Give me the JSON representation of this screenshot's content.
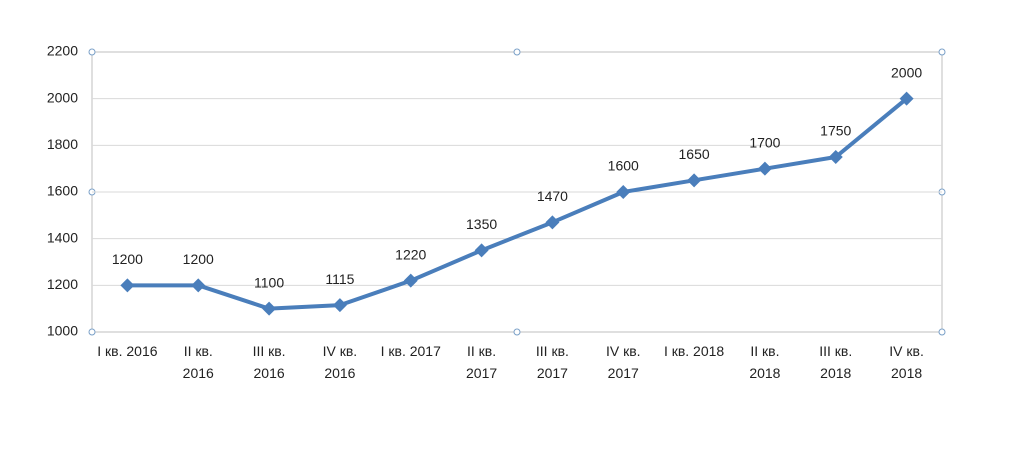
{
  "chart_data": {
    "type": "line",
    "categories": [
      "I кв. 2016",
      "II кв. 2016",
      "III кв. 2016",
      "IV кв. 2016",
      "I кв. 2017",
      "II кв. 2017",
      "III кв. 2017",
      "IV кв. 2017",
      "I кв. 2018",
      "II кв. 2018",
      "III кв. 2018",
      "IV кв. 2018"
    ],
    "values": [
      1200,
      1200,
      1100,
      1115,
      1220,
      1350,
      1470,
      1600,
      1650,
      1700,
      1750,
      2000
    ],
    "color": "#4a7ebb",
    "ylim": [
      1000,
      2200
    ],
    "yticks": [
      1000,
      1200,
      1400,
      1600,
      1800,
      2000,
      2200
    ],
    "grid": true
  }
}
